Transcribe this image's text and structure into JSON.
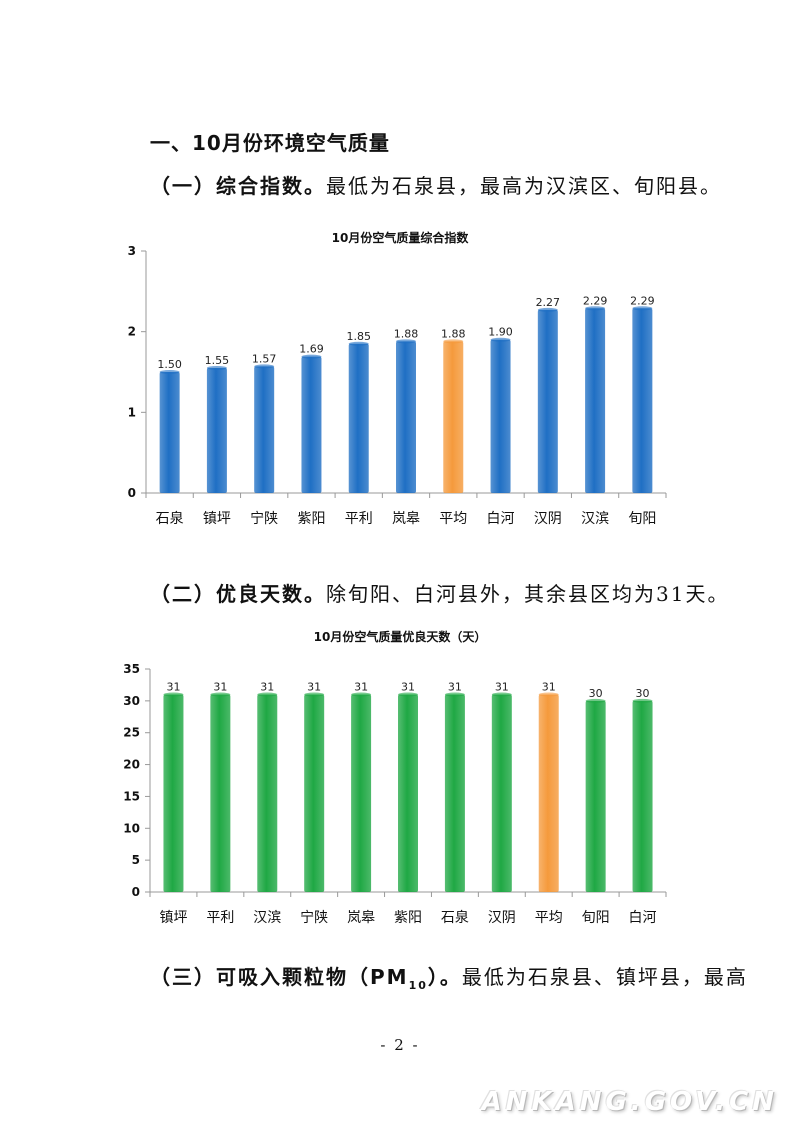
{
  "section": {
    "heading": "一、10月份环境空气质量",
    "p1_label": "（一）综合指数。",
    "p1_text": "最低为石泉县，最高为汉滨区、旬阳县。",
    "p2_label": "（二）优良天数。",
    "p2_text": "除旬阳、白河县外，其余县区均为31天。",
    "p3_label_a": "（三）可吸入颗粒物（PM",
    "p3_sub": "10",
    "p3_label_b": "）。",
    "p3_text": "最低为石泉县、镇坪县，最高"
  },
  "page_number": "- 2 -",
  "watermark": "ANKANG.GOV.CN",
  "colors": {
    "blue": "#1f6fc4",
    "green": "#1fa844",
    "orange": "#f59a3c"
  },
  "chart_data": [
    {
      "type": "bar",
      "title": "10月份空气质量综合指数",
      "categories": [
        "石泉",
        "镇坪",
        "宁陕",
        "紫阳",
        "平利",
        "岚皋",
        "平均",
        "白河",
        "汉阴",
        "汉滨",
        "旬阳"
      ],
      "values": [
        1.5,
        1.55,
        1.57,
        1.69,
        1.85,
        1.88,
        1.88,
        1.9,
        2.27,
        2.29,
        2.29
      ],
      "value_labels": [
        "1.50",
        "1.55",
        "1.57",
        "1.69",
        "1.85",
        "1.88",
        "1.88",
        "1.90",
        "2.27",
        "2.29",
        "2.29"
      ],
      "highlight": "平均",
      "ylim": [
        0,
        3
      ],
      "yticks": [
        0,
        1,
        2,
        3
      ],
      "grid": false,
      "legend": "none"
    },
    {
      "type": "bar",
      "title": "10月份空气质量优良天数（天）",
      "categories": [
        "镇坪",
        "平利",
        "汉滨",
        "宁陕",
        "岚皋",
        "紫阳",
        "石泉",
        "汉阴",
        "平均",
        "旬阳",
        "白河"
      ],
      "values": [
        31,
        31,
        31,
        31,
        31,
        31,
        31,
        31,
        31,
        30,
        30
      ],
      "value_labels": [
        "31",
        "31",
        "31",
        "31",
        "31",
        "31",
        "31",
        "31",
        "31",
        "30",
        "30"
      ],
      "highlight": "平均",
      "ylim": [
        0,
        35
      ],
      "yticks": [
        0,
        5,
        10,
        15,
        20,
        25,
        30,
        35
      ],
      "grid": false,
      "legend": "none"
    }
  ]
}
